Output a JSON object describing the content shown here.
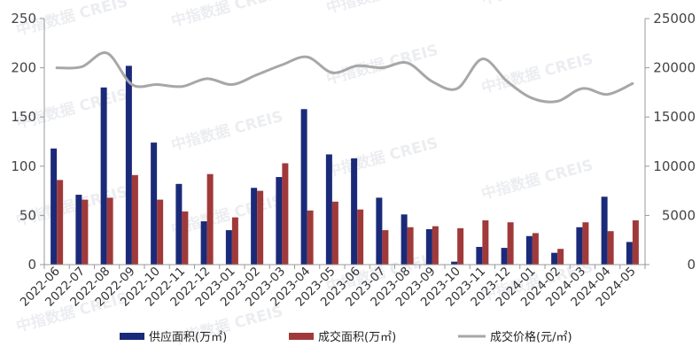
{
  "watermark": "中指数据 CREIS",
  "colors": {
    "supply": "#1b2a78",
    "deal": "#a03a3a",
    "price": "#a7a7a7",
    "axis": "#999999"
  },
  "chart_data": {
    "type": "bar",
    "categories": [
      "2022-06",
      "2022-07",
      "2022-08",
      "2022-09",
      "2022-10",
      "2022-11",
      "2022-12",
      "2023-01",
      "2023-02",
      "2023-03",
      "2023-04",
      "2023-05",
      "2023-06",
      "2023-07",
      "2023-08",
      "2023-09",
      "2023-10",
      "2023-11",
      "2023-12",
      "2024-01",
      "2024-02",
      "2024-03",
      "2024-04",
      "2024-05"
    ],
    "series": [
      {
        "name": "供应面积(万㎡)",
        "type": "bar",
        "axis": "left",
        "values": [
          118,
          71,
          180,
          202,
          124,
          82,
          44,
          35,
          78,
          89,
          158,
          112,
          108,
          68,
          51,
          36,
          3,
          18,
          17,
          29,
          12,
          38,
          69,
          23
        ]
      },
      {
        "name": "成交面积(万㎡)",
        "type": "bar",
        "axis": "left",
        "values": [
          86,
          66,
          68,
          91,
          66,
          54,
          92,
          48,
          75,
          103,
          55,
          64,
          56,
          35,
          38,
          39,
          37,
          45,
          43,
          32,
          16,
          43,
          34,
          45
        ]
      },
      {
        "name": "成交价格(元/㎡)",
        "type": "line",
        "axis": "right",
        "values": [
          20000,
          20100,
          21500,
          18300,
          18300,
          18100,
          18900,
          18300,
          19300,
          20300,
          21100,
          19500,
          20200,
          20000,
          20500,
          18600,
          17900,
          20900,
          18600,
          16900,
          16600,
          17900,
          17300,
          18400
        ]
      }
    ],
    "y_left": {
      "ticks": [
        0,
        50,
        100,
        150,
        200,
        250
      ],
      "ylim": [
        0,
        250
      ]
    },
    "y_right": {
      "ticks": [
        "0",
        "5000",
        "10000",
        "15000",
        "20000",
        "25000"
      ],
      "ylim": [
        0,
        25000
      ]
    },
    "legend_position": "bottom",
    "grid": false
  }
}
